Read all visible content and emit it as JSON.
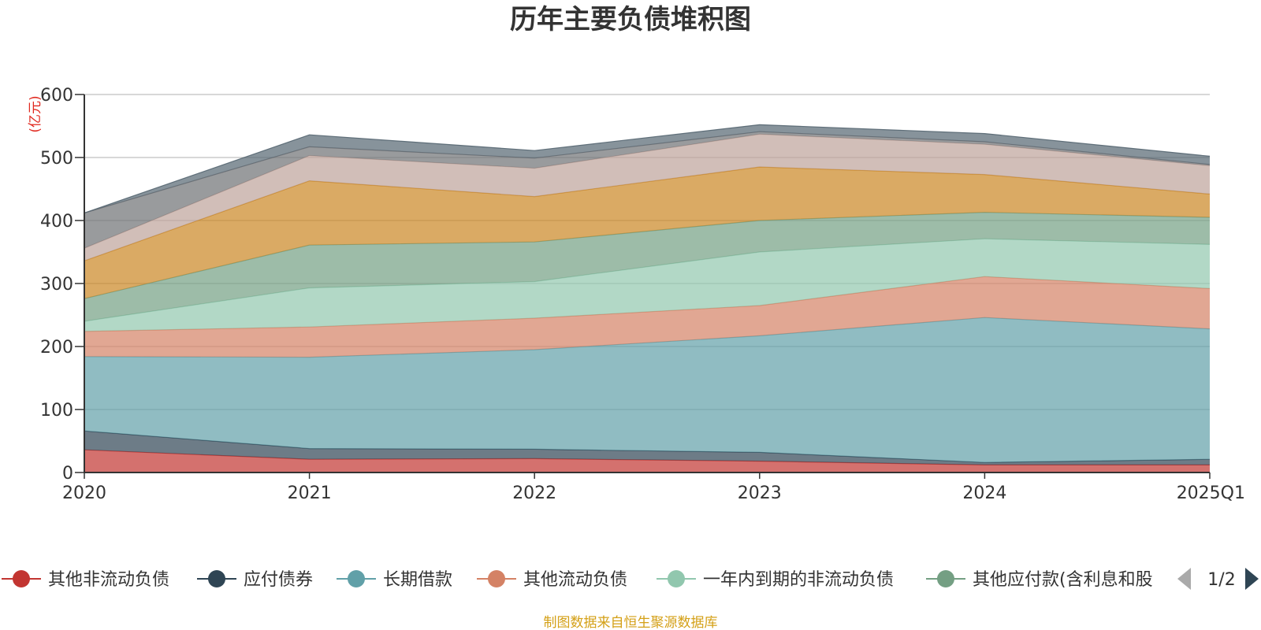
{
  "chart_data": {
    "type": "area",
    "stacked": true,
    "title": "历年主要负债堆积图",
    "unit_label": "(亿元)",
    "categories": [
      "2020",
      "2021",
      "2022",
      "2023",
      "2024",
      "2025Q1"
    ],
    "ylim": [
      0,
      600
    ],
    "yticks": [
      0,
      100,
      200,
      300,
      400,
      500,
      600
    ],
    "grid": true,
    "legend_position": "bottom",
    "legend_page": "1/2",
    "source_text": "制图数据来自恒生聚源数据库",
    "series": [
      {
        "name": "其他非流动负债",
        "color": "#c23531",
        "values": [
          36,
          21,
          22,
          18,
          12,
          12
        ]
      },
      {
        "name": "应付债券",
        "color": "#2f4554",
        "values": [
          30,
          17,
          15,
          14,
          4,
          9
        ]
      },
      {
        "name": "长期借款",
        "color": "#61a0a8",
        "values": [
          118,
          145,
          158,
          185,
          230,
          207
        ]
      },
      {
        "name": "其他流动负债",
        "color": "#d48265",
        "values": [
          40,
          48,
          50,
          48,
          65,
          64
        ]
      },
      {
        "name": "一年内到期的非流动负债",
        "color": "#91c7ae",
        "values": [
          16,
          62,
          58,
          85,
          60,
          70
        ]
      },
      {
        "name": "其他应付款(含利息和股利)",
        "color": "#749f83",
        "values": [
          36,
          68,
          63,
          50,
          42,
          43
        ]
      },
      {
        "name": "",
        "color": "#ca8622",
        "values": [
          60,
          102,
          72,
          85,
          60,
          37
        ]
      },
      {
        "name": "",
        "color": "#bda29a",
        "values": [
          20,
          40,
          45,
          52,
          48,
          45
        ]
      },
      {
        "name": "",
        "color": "#6e7074",
        "values": [
          56,
          14,
          16,
          4,
          4,
          2
        ]
      },
      {
        "name": "",
        "color": "#546570",
        "values": [
          0,
          19,
          12,
          11,
          13,
          13
        ]
      }
    ],
    "legend_visible": [
      {
        "label": "其他非流动负债",
        "color": "#c23531"
      },
      {
        "label": "应付债券",
        "color": "#2f4554"
      },
      {
        "label": "长期借款",
        "color": "#61a0a8"
      },
      {
        "label": "其他流动负债",
        "color": "#d48265"
      },
      {
        "label": "一年内到期的非流动负债",
        "color": "#91c7ae"
      },
      {
        "label": "其他应付款(含利息和股",
        "color": "#749f83"
      }
    ]
  }
}
